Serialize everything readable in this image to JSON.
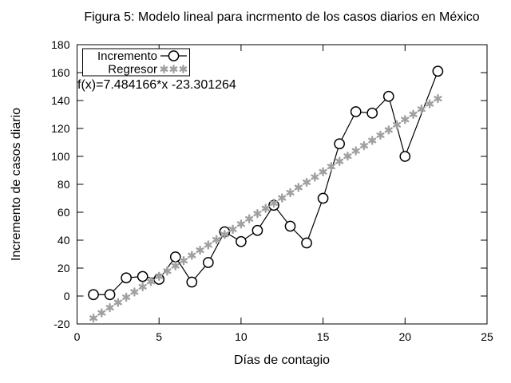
{
  "chart_data": {
    "type": "line",
    "title": "Figura 5: Modelo lineal para incrmento de los casos diarios en México",
    "xlabel": "Días de contagio",
    "ylabel": "Incremento de casos diario",
    "xlim": [
      0,
      25
    ],
    "ylim": [
      -20,
      180
    ],
    "xticks": [
      0,
      5,
      10,
      15,
      20,
      25
    ],
    "yticks": [
      -20,
      0,
      20,
      40,
      60,
      80,
      100,
      120,
      140,
      160,
      180
    ],
    "grid": false,
    "legend_position": "top-left",
    "annotation": "f(x)=7.484166*x -23.301264",
    "series": [
      {
        "name": "Incremento",
        "type": "line-markers",
        "marker": "open-circle",
        "color": "#000000",
        "x": [
          1,
          2,
          3,
          4,
          5,
          6,
          7,
          8,
          9,
          10,
          11,
          12,
          13,
          14,
          15,
          16,
          17,
          18,
          19,
          20,
          22
        ],
        "y": [
          1,
          1,
          13,
          14,
          12,
          28,
          10,
          24,
          46,
          39,
          47,
          65,
          50,
          38,
          70,
          109,
          132,
          131,
          143,
          100,
          161
        ]
      },
      {
        "name": "Regresor",
        "type": "scatter",
        "marker": "asterisk",
        "color": "#a0a0a0",
        "formula": "f(x)=7.484166*x-23.301264",
        "slope": 7.484166,
        "intercept": -23.301264,
        "x_start": 1,
        "x_end": 22,
        "x_step": 0.5
      }
    ]
  }
}
